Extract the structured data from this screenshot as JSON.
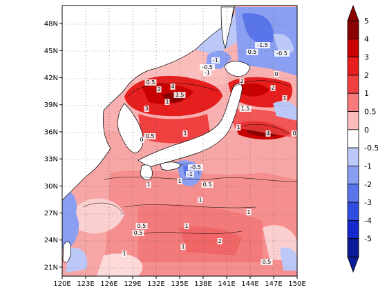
{
  "map": {
    "lon_range": [
      120,
      150
    ],
    "lat_range": [
      20,
      50
    ],
    "lon_ticks": [
      "120E",
      "123E",
      "126E",
      "129E",
      "132E",
      "135E",
      "138E",
      "141E",
      "144E",
      "147E",
      "150E"
    ],
    "lat_ticks": [
      "21N",
      "24N",
      "27N",
      "30N",
      "33N",
      "36N",
      "39N",
      "42N",
      "45N",
      "48N"
    ],
    "grid": "dotted",
    "land_color": "#ffffff",
    "coastline_color": "#000000"
  },
  "colorbar": {
    "labels": [
      "5",
      "4",
      "3",
      "2",
      "1",
      "0.5",
      "0",
      "-0.5",
      "-1",
      "-2",
      "-3",
      "-4",
      "-5"
    ],
    "colors": [
      "#8b0000",
      "#c80000",
      "#e61e1e",
      "#f04040",
      "#f77a7a",
      "#fcbcbc",
      "#ffffff",
      "#bcc8f7",
      "#8a9ef2",
      "#5a75ea",
      "#2f4de0",
      "#1428cc",
      "#0a1a99"
    ],
    "extends": "both"
  },
  "contour_labels": [
    "0.5",
    "1",
    "1.5",
    "2",
    "3",
    "4",
    "-0.5",
    "-1",
    "-1.5",
    "0",
    "0.5",
    "1",
    "1",
    "0.5",
    "1",
    "1",
    "0.5",
    "1",
    "2",
    "1",
    "1",
    "0.5",
    "1",
    "-0.5",
    "-1",
    "0.5",
    "1",
    "1.5",
    "2",
    "2",
    "4",
    "-0.5",
    "0.5",
    "1",
    "-1",
    "0",
    "0.5"
  ]
}
